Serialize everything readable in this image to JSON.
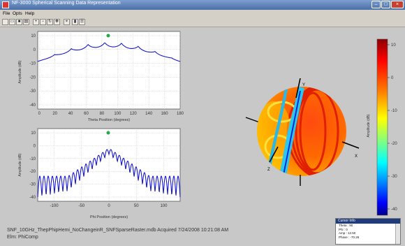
{
  "window": {
    "title": "NF-3000 Spherical Scanning Data Representation"
  },
  "menu": [
    {
      "label": "File"
    },
    {
      "label": "Opts"
    },
    {
      "label": "Help"
    }
  ],
  "toolbar": {
    "icons": [
      "new-icon",
      "open-icon",
      "save-icon",
      "print-icon",
      "zoom-in-icon",
      "zoom-out-icon",
      "rotate-icon",
      "pan-icon",
      "datacursor-icon",
      "colorbar-icon",
      "legend-icon"
    ]
  },
  "plot_top": {
    "ylabel": "Amplitude (dB)",
    "xlabel": "Theta    Position (degrees)",
    "yticks": [
      "10",
      "0",
      "-10",
      "-20",
      "-30",
      "-40"
    ],
    "xticks": [
      "0",
      "20",
      "40",
      "60",
      "80",
      "100",
      "120",
      "140",
      "160",
      "180"
    ]
  },
  "plot_bottom": {
    "ylabel": "Amplitude (dB)",
    "xlabel": "Phi    Position (degrees)",
    "yticks": [
      "10",
      "0",
      "-10",
      "-20",
      "-30",
      "-40"
    ],
    "xticks": [
      "-100",
      "-50",
      "0",
      "50",
      "100"
    ]
  },
  "sphere": {
    "axis_labels": {
      "y": "Y",
      "x": "X",
      "z": "Z"
    }
  },
  "colorbar": {
    "label": "Amplitude (dB)",
    "ticks": [
      "10",
      "0",
      "-10",
      "-20",
      "-30",
      "-40"
    ],
    "colors": [
      "#8b0000",
      "#ff0000",
      "#ff8000",
      "#ffff00",
      "#80ff80",
      "#00ffff",
      "#0080ff",
      "#0000ff",
      "#00008b"
    ]
  },
  "footer": {
    "line1": "SNF_10GHz_ThepPhipHemi_NoChangeinR_SNFSparseRaster.mdb  Acquired 7/24/2008 10:21:08 AM",
    "line2": "Elm: PhiComp"
  },
  "readout": {
    "title": "Cursor Info",
    "lines": [
      "Theta : 90",
      "Phi : 0",
      "Amp : 12.50",
      "Phase : -70.26"
    ]
  }
}
